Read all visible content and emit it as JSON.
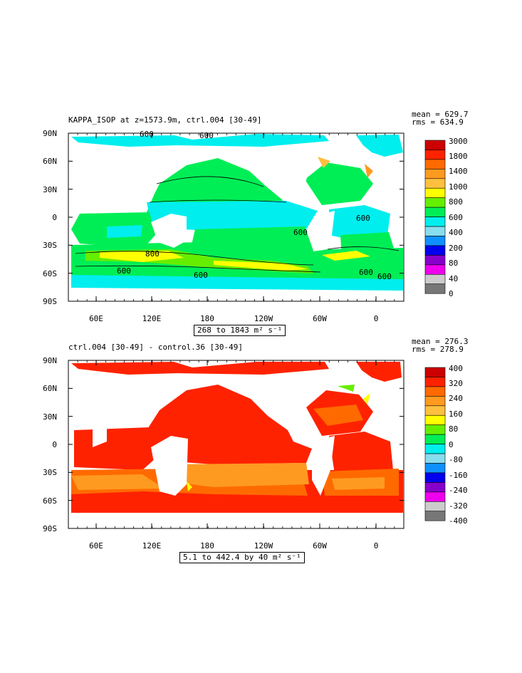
{
  "panels": [
    {
      "title": "KAPPA_ISOP at z=1573.9m, ctrl.004 [30-49]",
      "mean_label": "mean = 629.7",
      "rms_label": "rms = 634.9",
      "range_label": "268 to 1843 m² s⁻¹",
      "lat_ticks": [
        "90N",
        "60N",
        "30N",
        "0",
        "30S",
        "60S",
        "90S"
      ],
      "lon_ticks": [
        "60E",
        "120E",
        "180",
        "120W",
        "60W",
        "0"
      ],
      "colorbar_labels": [
        "3000",
        "1800",
        "1400",
        "1000",
        "800",
        "600",
        "400",
        "200",
        "80",
        "40",
        "0"
      ],
      "colorbar_colors": [
        "#cc0000",
        "#ff2200",
        "#ff6a00",
        "#ff9a20",
        "#ffc040",
        "#ffff00",
        "#66ee00",
        "#00ee55",
        "#00eeee",
        "#88ddee",
        "#1090ff",
        "#0000ee",
        "#8800cc",
        "#ee00ee",
        "#cccccc",
        "#777777"
      ],
      "contour_labels": [
        "600",
        "600",
        "800",
        "600",
        "600",
        "600",
        "600",
        "600",
        "600"
      ]
    },
    {
      "title": "ctrl.004 [30-49] - control.36 [30-49]",
      "mean_label": "mean = 276.3",
      "rms_label": "rms = 278.9",
      "range_label": "5.1 to 442.4 by 40 m² s⁻¹",
      "lat_ticks": [
        "90N",
        "60N",
        "30N",
        "0",
        "30S",
        "60S",
        "90S"
      ],
      "lon_ticks": [
        "60E",
        "120E",
        "180",
        "120W",
        "60W",
        "0"
      ],
      "colorbar_labels": [
        "400",
        "320",
        "240",
        "160",
        "80",
        "0",
        "-80",
        "-160",
        "-240",
        "-320",
        "-400"
      ],
      "colorbar_colors": [
        "#cc0000",
        "#ff2200",
        "#ff6a00",
        "#ff9a20",
        "#ffc040",
        "#ffff00",
        "#66ee00",
        "#00ee55",
        "#00eeee",
        "#88ddee",
        "#1090ff",
        "#0000ee",
        "#8800cc",
        "#ee00ee",
        "#cccccc",
        "#777777"
      ]
    }
  ],
  "chart_data": [
    {
      "type": "heatmap",
      "title": "KAPPA_ISOP at z=1573.9m, ctrl.004 [30-49]",
      "variable": "KAPPA_ISOP",
      "units": "m² s⁻¹",
      "mean": 629.7,
      "rms": 634.9,
      "min": 268,
      "max": 1843,
      "xlabel": "",
      "ylabel": "",
      "x_ticks": [
        "60E",
        "120E",
        "180",
        "120W",
        "60W",
        "0"
      ],
      "y_ticks": [
        "90N",
        "60N",
        "30N",
        "0",
        "30S",
        "60S",
        "90S"
      ],
      "levels": [
        0,
        40,
        80,
        200,
        400,
        600,
        800,
        1000,
        1400,
        1800,
        3000
      ],
      "contour_levels": [
        600,
        800
      ]
    },
    {
      "type": "heatmap",
      "title": "ctrl.004 [30-49] - control.36 [30-49]",
      "units": "m² s⁻¹",
      "mean": 276.3,
      "rms": 278.9,
      "min": 5.1,
      "max": 442.4,
      "interval": 40,
      "xlabel": "",
      "ylabel": "",
      "x_ticks": [
        "60E",
        "120E",
        "180",
        "120W",
        "60W",
        "0"
      ],
      "y_ticks": [
        "90N",
        "60N",
        "30N",
        "0",
        "30S",
        "60S",
        "90S"
      ],
      "levels": [
        -400,
        -320,
        -240,
        -160,
        -80,
        0,
        80,
        160,
        240,
        320,
        400
      ]
    }
  ]
}
